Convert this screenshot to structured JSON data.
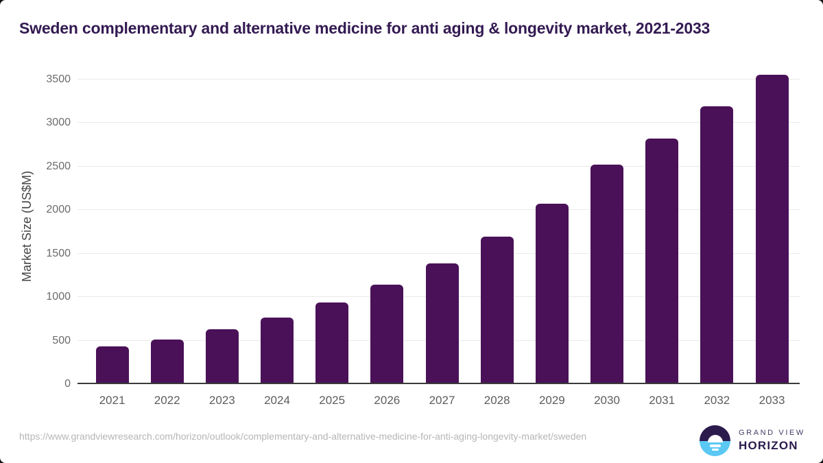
{
  "page": {
    "title": "Sweden complementary and alternative medicine for anti aging & longevity market, 2021-2033"
  },
  "chart_data": {
    "type": "bar",
    "title": "Sweden complementary and alternative medicine for anti aging & longevity market, 2021-2033",
    "categories": [
      "2021",
      "2022",
      "2023",
      "2024",
      "2025",
      "2026",
      "2027",
      "2028",
      "2029",
      "2030",
      "2031",
      "2032",
      "2033"
    ],
    "values": [
      430,
      515,
      630,
      765,
      935,
      1140,
      1390,
      1695,
      2070,
      2520,
      2825,
      3190,
      3555
    ],
    "xlabel": "",
    "ylabel": "Market Size (US$M)",
    "yticks": [
      0,
      500,
      1000,
      1500,
      2000,
      2500,
      3000,
      3500
    ],
    "ylim": [
      0,
      3600
    ],
    "grid": "horizontal",
    "legend": "none",
    "bar_color": "#4a1158"
  },
  "footer": {
    "source_url": "https://www.grandviewresearch.com/horizon/outlook/complementary-and-alternative-medicine-for-anti-aging-longevity-market/sweden",
    "logo": {
      "top": "GRAND VIEW",
      "bottom": "HORIZON"
    }
  },
  "colors": {
    "bar": "#4a1158",
    "title": "#331a52",
    "tick_label": "#5c5c5c",
    "axis_line": "#3a3a3a",
    "gridline": "#eaeaea",
    "url_text": "#b5b5b5",
    "logo_dark": "#2b1b4d",
    "logo_blue": "#5ac8f3"
  }
}
